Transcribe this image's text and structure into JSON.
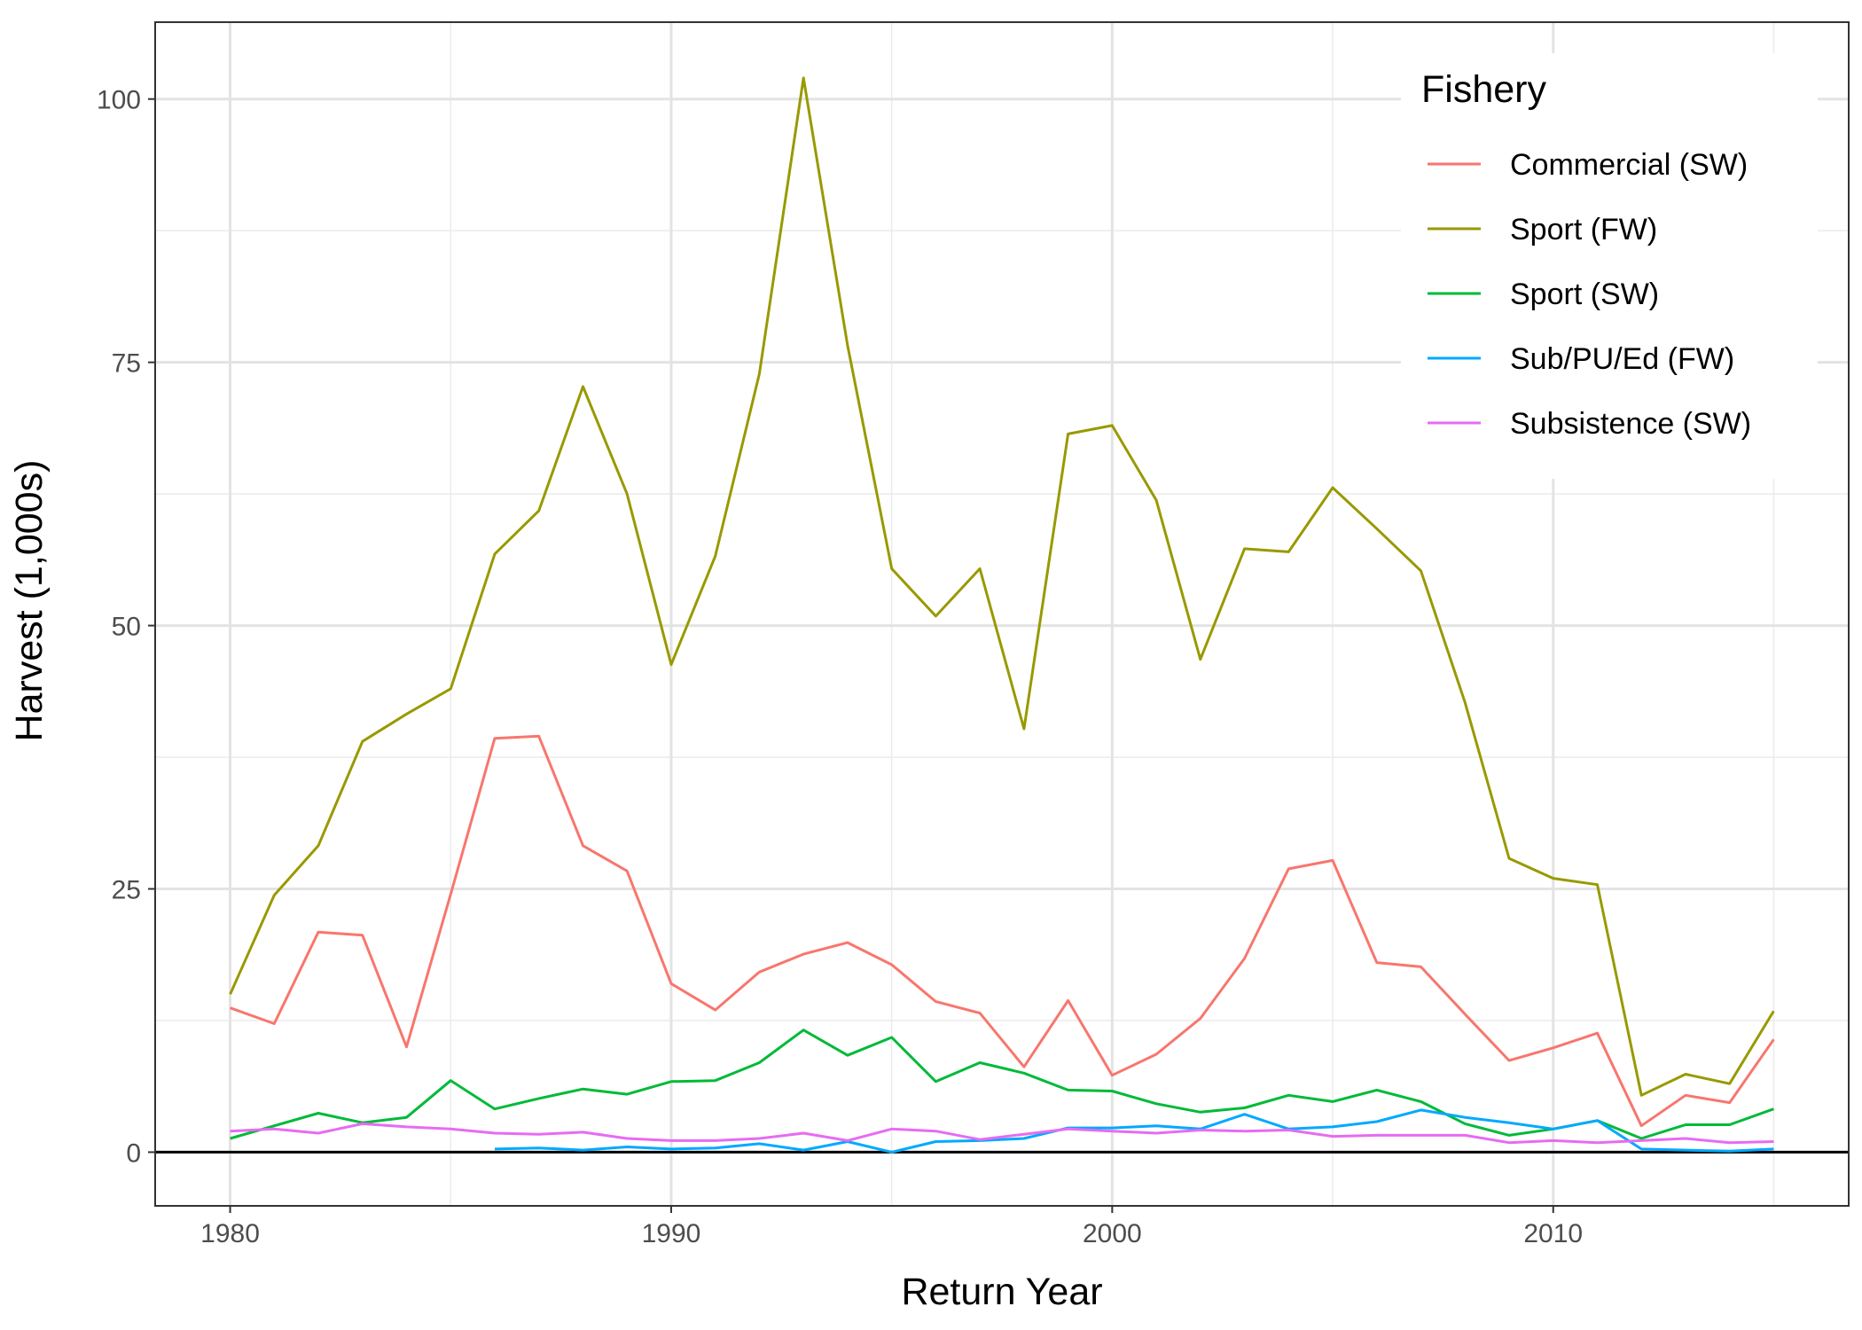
{
  "chart_data": {
    "type": "line",
    "xlabel": "Return Year",
    "ylabel": "Harvest (1,000s)",
    "xlim": [
      1978.3,
      2016.7
    ],
    "ylim": [
      -5.1,
      107.3
    ],
    "x_ticks": [
      1980,
      1990,
      2000,
      2010
    ],
    "y_ticks": [
      0,
      25,
      50,
      75,
      100
    ],
    "grid": true,
    "zero_line": true,
    "legend": {
      "title": "Fishery",
      "position": "top-right"
    },
    "series": [
      {
        "name": "Commercial (SW)",
        "color": "#F8766D",
        "x": [
          1980,
          1981,
          1982,
          1983,
          1984,
          1985,
          1986,
          1987,
          1988,
          1989,
          1990,
          1991,
          1992,
          1993,
          1994,
          1995,
          1996,
          1997,
          1998,
          1999,
          2000,
          2001,
          2002,
          2003,
          2004,
          2005,
          2006,
          2007,
          2008,
          2009,
          2010,
          2011,
          2012,
          2013,
          2014,
          2015
        ],
        "values": [
          13.7,
          12.2,
          20.9,
          20.6,
          10.0,
          24.5,
          39.3,
          39.5,
          29.1,
          26.7,
          16.0,
          13.5,
          17.1,
          18.8,
          19.9,
          17.8,
          14.3,
          13.2,
          8.1,
          14.4,
          7.3,
          9.3,
          12.7,
          18.4,
          26.9,
          27.7,
          18.0,
          17.6,
          13.1,
          8.7,
          9.9,
          11.3,
          2.5,
          5.4,
          4.7,
          10.7
        ]
      },
      {
        "name": "Sport (FW)",
        "color": "#999900",
        "x": [
          1980,
          1981,
          1982,
          1983,
          1984,
          1985,
          1986,
          1987,
          1988,
          1989,
          1990,
          1991,
          1992,
          1993,
          1994,
          1995,
          1996,
          1997,
          1998,
          1999,
          2000,
          2001,
          2002,
          2003,
          2004,
          2005,
          2006,
          2007,
          2008,
          2009,
          2010,
          2011,
          2012,
          2013,
          2014,
          2015
        ],
        "values": [
          15.0,
          24.4,
          29.1,
          39.0,
          41.6,
          44.0,
          56.8,
          60.9,
          72.7,
          62.5,
          46.3,
          56.6,
          73.9,
          102.0,
          76.6,
          55.4,
          50.9,
          55.4,
          40.2,
          68.2,
          69.0,
          61.9,
          46.8,
          57.3,
          57.0,
          63.1,
          59.2,
          55.2,
          42.7,
          27.9,
          26.0,
          25.4,
          5.4,
          7.4,
          6.5,
          13.4
        ]
      },
      {
        "name": "Sport (SW)",
        "color": "#00BA38",
        "x": [
          1980,
          1981,
          1982,
          1983,
          1984,
          1985,
          1986,
          1987,
          1988,
          1989,
          1990,
          1991,
          1992,
          1993,
          1994,
          1995,
          1996,
          1997,
          1998,
          1999,
          2000,
          2001,
          2002,
          2003,
          2004,
          2005,
          2006,
          2007,
          2008,
          2009,
          2010,
          2011,
          2012,
          2013,
          2014,
          2015
        ],
        "values": [
          1.3,
          2.5,
          3.7,
          2.8,
          3.3,
          6.8,
          4.1,
          5.1,
          6.0,
          5.5,
          6.7,
          6.8,
          8.5,
          11.6,
          9.2,
          10.9,
          6.7,
          8.5,
          7.5,
          5.9,
          5.8,
          4.6,
          3.8,
          4.2,
          5.4,
          4.8,
          5.9,
          4.8,
          2.7,
          1.6,
          2.2,
          3.0,
          1.3,
          2.6,
          2.6,
          4.1
        ]
      },
      {
        "name": "Sub/PU/Ed (FW)",
        "color": "#00A9FF",
        "x": [
          1986,
          1987,
          1988,
          1989,
          1990,
          1991,
          1992,
          1993,
          1994,
          1995,
          1996,
          1997,
          1998,
          1999,
          2000,
          2001,
          2002,
          2003,
          2004,
          2005,
          2006,
          2007,
          2008,
          2009,
          2010,
          2011,
          2012,
          2013,
          2014,
          2015
        ],
        "values": [
          0.3,
          0.4,
          0.2,
          0.5,
          0.3,
          0.4,
          0.8,
          0.2,
          1.0,
          0.0,
          1.0,
          1.1,
          1.3,
          2.3,
          2.3,
          2.5,
          2.2,
          3.6,
          2.2,
          2.4,
          2.9,
          4.0,
          3.3,
          2.8,
          2.2,
          3.0,
          0.3,
          0.2,
          0.1,
          0.3
        ]
      },
      {
        "name": "Subsistence (SW)",
        "color": "#E76BF3",
        "x": [
          1980,
          1981,
          1982,
          1983,
          1984,
          1985,
          1986,
          1987,
          1988,
          1989,
          1990,
          1991,
          1992,
          1993,
          1994,
          1995,
          1996,
          1997,
          1998,
          1999,
          2000,
          2001,
          2002,
          2003,
          2004,
          2005,
          2006,
          2007,
          2008,
          2009,
          2010,
          2011,
          2012,
          2013,
          2014,
          2015
        ],
        "values": [
          2.0,
          2.2,
          1.8,
          2.7,
          2.4,
          2.2,
          1.8,
          1.7,
          1.9,
          1.3,
          1.1,
          1.1,
          1.3,
          1.8,
          1.1,
          2.2,
          2.0,
          1.2,
          1.7,
          2.2,
          2.0,
          1.8,
          2.1,
          2.0,
          2.1,
          1.5,
          1.6,
          1.6,
          1.6,
          0.9,
          1.1,
          0.9,
          1.1,
          1.3,
          0.9,
          1.0
        ]
      }
    ]
  }
}
